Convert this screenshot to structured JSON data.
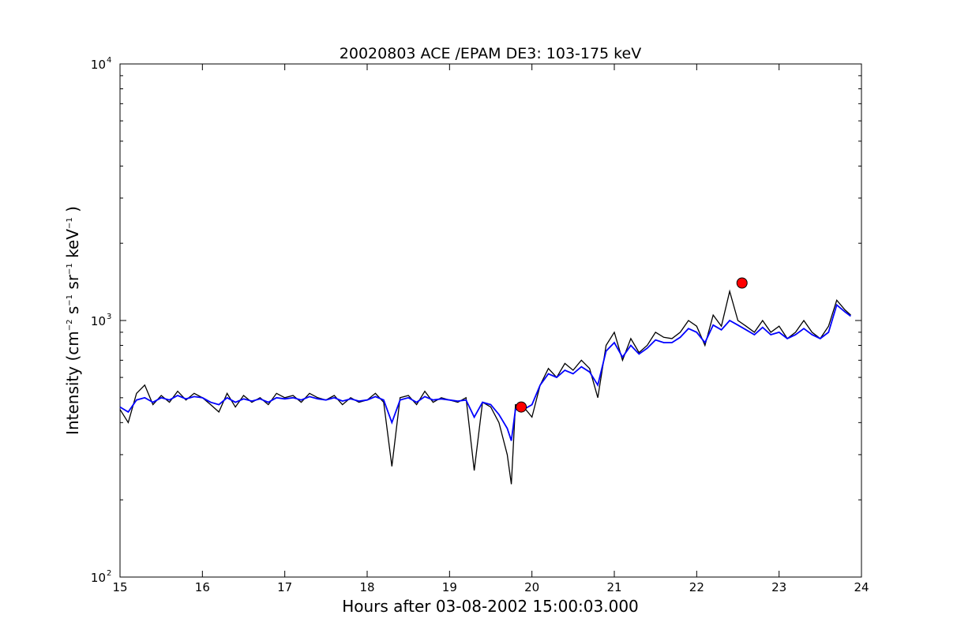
{
  "chart_data": {
    "type": "line",
    "title": "20020803 ACE /EPAM DE3: 103-175 keV",
    "xlabel": "Hours after 03-08-2002 15:00:03.000",
    "ylabel_parts": {
      "prefix": "Intensity (cm",
      "exp_cm": "−2",
      "s": " s",
      "exp_s": "−1",
      "sr": " sr",
      "exp_sr": "−1",
      "kev": " keV",
      "exp_kev": "−1",
      "suffix": " )"
    },
    "xlim": [
      15,
      24
    ],
    "ylim": [
      100,
      10000
    ],
    "yscale": "log",
    "grid": false,
    "legend": "none",
    "x_ticks": [
      15,
      16,
      17,
      18,
      19,
      20,
      21,
      22,
      23,
      24
    ],
    "x_tick_labels": [
      "15",
      "16",
      "17",
      "18",
      "19",
      "20",
      "21",
      "22",
      "23",
      "24"
    ],
    "y_major_ticks": [
      {
        "value": 100,
        "base": "10",
        "exp": "2"
      },
      {
        "value": 1000,
        "base": "10",
        "exp": "3"
      },
      {
        "value": 10000,
        "base": "10",
        "exp": "4"
      }
    ],
    "series": [
      {
        "color": "#000000",
        "x": [
          15.0,
          15.1,
          15.2,
          15.3,
          15.4,
          15.5,
          15.6,
          15.7,
          15.8,
          15.9,
          16.0,
          16.1,
          16.2,
          16.3,
          16.4,
          16.5,
          16.6,
          16.7,
          16.8,
          16.9,
          17.0,
          17.1,
          17.2,
          17.3,
          17.4,
          17.5,
          17.6,
          17.7,
          17.8,
          17.9,
          18.0,
          18.1,
          18.2,
          18.3,
          18.4,
          18.5,
          18.6,
          18.7,
          18.8,
          18.9,
          19.0,
          19.1,
          19.2,
          19.3,
          19.4,
          19.5,
          19.6,
          19.7,
          19.75,
          19.8,
          19.9,
          20.0,
          20.1,
          20.2,
          20.3,
          20.4,
          20.5,
          20.6,
          20.7,
          20.8,
          20.9,
          21.0,
          21.1,
          21.2,
          21.3,
          21.4,
          21.5,
          21.6,
          21.7,
          21.8,
          21.9,
          22.0,
          22.1,
          22.2,
          22.3,
          22.4,
          22.5,
          22.6,
          22.7,
          22.8,
          22.9,
          23.0,
          23.1,
          23.2,
          23.3,
          23.4,
          23.5,
          23.6,
          23.7,
          23.8,
          23.87
        ],
        "y": [
          450,
          400,
          520,
          560,
          470,
          510,
          480,
          530,
          490,
          520,
          500,
          470,
          440,
          520,
          460,
          510,
          480,
          500,
          470,
          520,
          500,
          510,
          480,
          520,
          500,
          490,
          510,
          470,
          500,
          480,
          490,
          520,
          480,
          270,
          500,
          510,
          470,
          530,
          480,
          500,
          490,
          480,
          500,
          260,
          480,
          460,
          400,
          300,
          230,
          470,
          460,
          420,
          560,
          650,
          600,
          680,
          640,
          700,
          650,
          500,
          800,
          900,
          700,
          850,
          750,
          800,
          900,
          860,
          850,
          900,
          1000,
          950,
          800,
          1050,
          950,
          1300,
          1000,
          950,
          900,
          1000,
          900,
          950,
          850,
          900,
          1000,
          900,
          850,
          950,
          1200,
          1100,
          1050
        ]
      },
      {
        "color": "#0000ff",
        "x": [
          15.0,
          15.1,
          15.2,
          15.3,
          15.4,
          15.5,
          15.6,
          15.7,
          15.8,
          15.9,
          16.0,
          16.1,
          16.2,
          16.3,
          16.4,
          16.5,
          16.6,
          16.7,
          16.8,
          16.9,
          17.0,
          17.1,
          17.2,
          17.3,
          17.4,
          17.5,
          17.6,
          17.7,
          17.8,
          17.9,
          18.0,
          18.1,
          18.2,
          18.3,
          18.4,
          18.5,
          18.6,
          18.7,
          18.8,
          18.9,
          19.0,
          19.1,
          19.2,
          19.3,
          19.4,
          19.5,
          19.6,
          19.7,
          19.75,
          19.8,
          19.9,
          20.0,
          20.1,
          20.2,
          20.3,
          20.4,
          20.5,
          20.6,
          20.7,
          20.8,
          20.9,
          21.0,
          21.1,
          21.2,
          21.3,
          21.4,
          21.5,
          21.6,
          21.7,
          21.8,
          21.9,
          22.0,
          22.1,
          22.2,
          22.3,
          22.4,
          22.5,
          22.6,
          22.7,
          22.8,
          22.9,
          23.0,
          23.1,
          23.2,
          23.3,
          23.4,
          23.5,
          23.6,
          23.7,
          23.8,
          23.87
        ],
        "y": [
          460,
          440,
          490,
          500,
          480,
          500,
          490,
          510,
          495,
          505,
          500,
          480,
          470,
          500,
          480,
          495,
          485,
          495,
          480,
          500,
          495,
          500,
          490,
          505,
          495,
          490,
          500,
          485,
          495,
          485,
          490,
          505,
          490,
          400,
          490,
          500,
          480,
          505,
          490,
          495,
          490,
          485,
          490,
          420,
          480,
          470,
          430,
          380,
          340,
          450,
          450,
          470,
          560,
          620,
          600,
          640,
          620,
          660,
          630,
          560,
          760,
          820,
          720,
          800,
          740,
          780,
          840,
          820,
          820,
          860,
          930,
          900,
          820,
          960,
          920,
          1000,
          960,
          920,
          880,
          940,
          880,
          900,
          850,
          880,
          930,
          880,
          850,
          900,
          1150,
          1080,
          1040
        ]
      }
    ],
    "markers": [
      {
        "x": 19.87,
        "y": 460,
        "color": "#ff0000"
      },
      {
        "x": 22.55,
        "y": 1400,
        "color": "#ff0000"
      }
    ]
  }
}
